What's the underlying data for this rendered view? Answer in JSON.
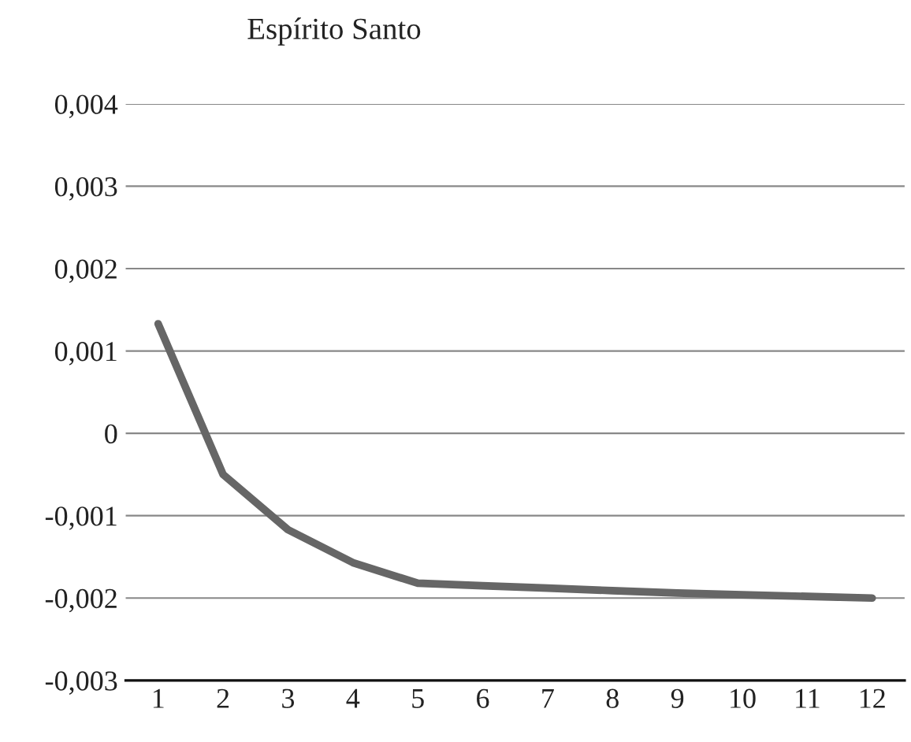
{
  "chart_data": {
    "type": "line",
    "title": "Espírito Santo",
    "categories": [
      "1",
      "2",
      "3",
      "4",
      "5",
      "6",
      "7",
      "8",
      "9",
      "10",
      "11",
      "12"
    ],
    "series": [
      {
        "color": "#666666",
        "values": [
          0.00133,
          -0.0005,
          -0.00117,
          -0.00157,
          -0.00182,
          -0.00185,
          -0.00188,
          -0.00191,
          -0.00194,
          -0.00196,
          -0.00198,
          -0.002
        ]
      }
    ],
    "ylim": [
      -0.003,
      0.004
    ],
    "yticks": [
      {
        "value": -0.003,
        "label": "-0,003"
      },
      {
        "value": -0.002,
        "label": "-0,002"
      },
      {
        "value": -0.001,
        "label": "-0,001"
      },
      {
        "value": 0,
        "label": "0"
      },
      {
        "value": 0.001,
        "label": "0,001"
      },
      {
        "value": 0.002,
        "label": "0,002"
      },
      {
        "value": 0.003,
        "label": "0,003"
      },
      {
        "value": 0.004,
        "label": "0,004"
      }
    ],
    "grid": "y",
    "marker": "none",
    "line_style": "solid"
  }
}
